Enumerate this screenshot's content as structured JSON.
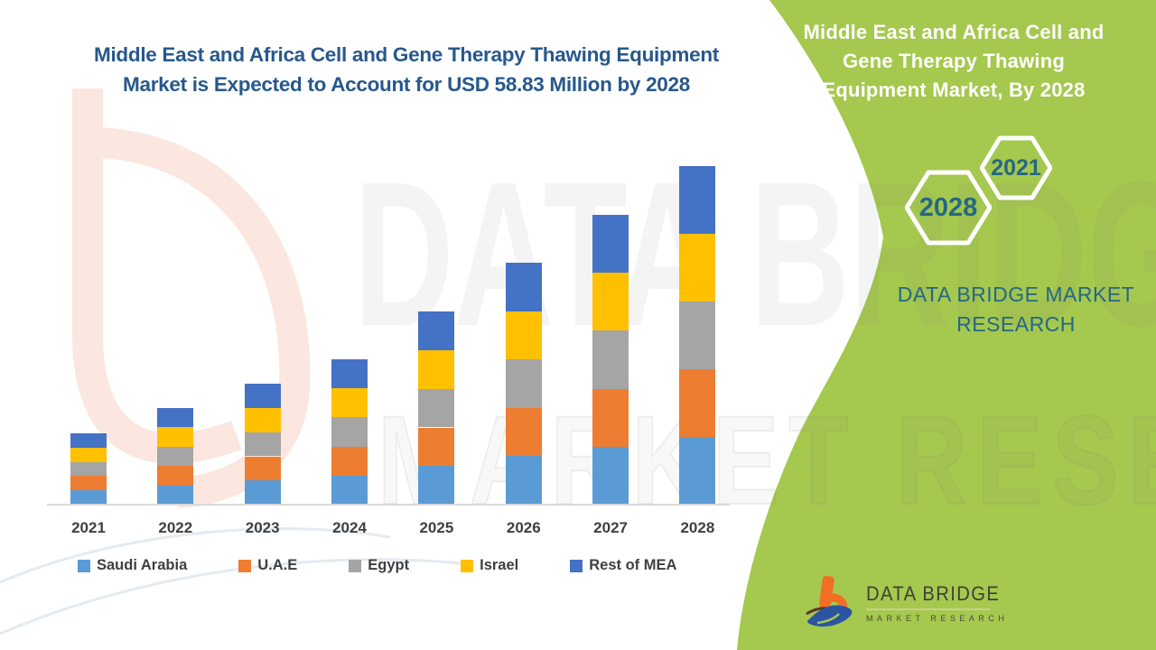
{
  "header": {
    "title_lines": [
      "Middle East and Africa Cell and Gene Therapy Thawing Equipment",
      "Market is Expected to Account for USD 58.83 Million by 2028"
    ]
  },
  "panel": {
    "title_lines": [
      "Middle East and Africa Cell and",
      "Gene Therapy Thawing",
      "Equipment Market, By 2028"
    ],
    "hexagon_years": {
      "small": "2021",
      "large": "2028"
    },
    "brand_lines": [
      "DATA BRIDGE MARKET",
      "RESEARCH"
    ],
    "background_color": "#A5C84E"
  },
  "watermark": {
    "line1": "DATA BRIDGE",
    "line2": "MARKET RESEARCH"
  },
  "footer_logo": {
    "text": "DATA BRIDGE",
    "subtext": "MARKET RESEARCH"
  },
  "chart_data": {
    "type": "bar",
    "stacked": true,
    "title": "Middle East and Africa Cell and Gene Therapy Thawing Equipment Market is Expected to Account for USD 58.83 Million by 2028",
    "unit": "USD Million",
    "categories": [
      "2021",
      "2022",
      "2023",
      "2024",
      "2025",
      "2026",
      "2027",
      "2028"
    ],
    "series": [
      {
        "name": "Saudi Arabia",
        "color": "#5B9BD5",
        "values": [
          2.48,
          3.36,
          4.2,
          5.05,
          6.71,
          8.41,
          10.07,
          11.77
        ]
      },
      {
        "name": "U.A.E",
        "color": "#ED7D31",
        "values": [
          2.48,
          3.36,
          4.2,
          5.05,
          6.71,
          8.41,
          10.07,
          11.77
        ]
      },
      {
        "name": "Egypt",
        "color": "#A5A5A5",
        "values": [
          2.48,
          3.36,
          4.2,
          5.05,
          6.71,
          8.41,
          10.07,
          11.77
        ]
      },
      {
        "name": "Israel",
        "color": "#FFC000",
        "values": [
          2.48,
          3.36,
          4.2,
          5.05,
          6.71,
          8.41,
          10.07,
          11.77
        ]
      },
      {
        "name": "Rest of MEA",
        "color": "#4472C4",
        "values": [
          2.48,
          3.36,
          4.2,
          5.05,
          6.71,
          8.41,
          10.07,
          11.77
        ]
      }
    ],
    "estimated_totals": [
      12.4,
      16.8,
      21.0,
      25.3,
      33.6,
      42.0,
      50.4,
      58.83
    ],
    "stated_value_2028": "USD 58.83 Million",
    "ylim": [
      0,
      60
    ],
    "y_axis_visible": false,
    "grid": false,
    "legend_position": "bottom"
  },
  "colors": {
    "title_text": "#27588C",
    "panel_green": "#A5C84E",
    "panel_text": "#FFFFFF",
    "hexagon_text": "#256884",
    "axis_line": "#D9D9D9",
    "label_gray": "#3F3F3F",
    "logo_orange": "#F06F23",
    "logo_blue": "#2B55A0"
  }
}
